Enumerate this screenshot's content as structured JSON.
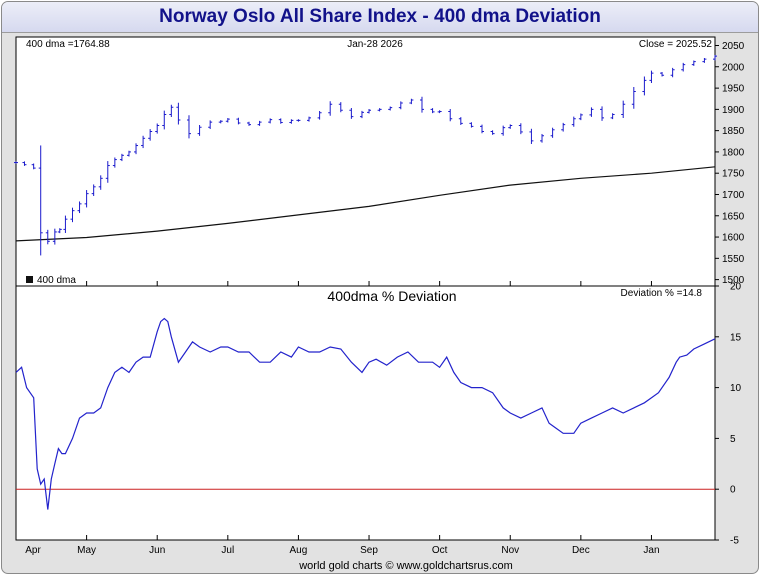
{
  "title": "Norway Oslo All Share Index - 400 dma Deviation",
  "footer": "world gold charts © www.goldchartsrus.com",
  "colors": {
    "price": "#1a1acc",
    "dma": "#111111",
    "deviation": "#2323cc",
    "zero_line": "#cc2020",
    "title_text": "#12128a"
  },
  "chart_data": [
    {
      "type": "line",
      "title": "",
      "header": {
        "dma_label": "400 dma =1764.88",
        "date_label": "Jan-28  2026",
        "close_label": "Close = 2025.52"
      },
      "legend": [
        {
          "label": "400 dma",
          "color": "#111111",
          "placement": "bottom-left"
        }
      ],
      "x_months": [
        "Apr",
        "May",
        "Jun",
        "Jul",
        "Aug",
        "Sep",
        "Oct",
        "Nov",
        "Dec",
        "Jan"
      ],
      "x_month_index": [
        0.5,
        1,
        2,
        3,
        4,
        5,
        6,
        7,
        8,
        9
      ],
      "x_range": [
        0,
        9.9
      ],
      "y_ticks": [
        1500,
        1550,
        1600,
        1650,
        1700,
        1750,
        1800,
        1850,
        1900,
        1950,
        2000,
        2050
      ],
      "ylim": [
        1485,
        2070
      ],
      "grid": false,
      "series": [
        {
          "name": "Oslo All Share Index",
          "style": "hlc-bars",
          "x": [
            0,
            0.12,
            0.25,
            0.35,
            0.45,
            0.55,
            0.62,
            0.7,
            0.8,
            0.9,
            1.0,
            1.1,
            1.2,
            1.3,
            1.4,
            1.5,
            1.6,
            1.7,
            1.8,
            1.9,
            2.0,
            2.1,
            2.2,
            2.3,
            2.45,
            2.6,
            2.75,
            2.9,
            3.0,
            3.15,
            3.3,
            3.45,
            3.6,
            3.75,
            3.9,
            4.0,
            4.15,
            4.3,
            4.45,
            4.6,
            4.75,
            4.9,
            5.0,
            5.15,
            5.3,
            5.45,
            5.6,
            5.75,
            5.9,
            6.0,
            6.15,
            6.3,
            6.45,
            6.6,
            6.75,
            6.9,
            7.0,
            7.15,
            7.3,
            7.45,
            7.6,
            7.75,
            7.9,
            8.0,
            8.15,
            8.3,
            8.45,
            8.6,
            8.75,
            8.9,
            9.0,
            9.15,
            9.3,
            9.45,
            9.6,
            9.75,
            9.9
          ],
          "y": [
            1775,
            1770,
            1762,
            1610,
            1590,
            1612,
            1618,
            1642,
            1662,
            1678,
            1702,
            1718,
            1738,
            1768,
            1782,
            1792,
            1800,
            1815,
            1832,
            1848,
            1862,
            1888,
            1905,
            1875,
            1843,
            1858,
            1870,
            1872,
            1877,
            1868,
            1864,
            1870,
            1876,
            1869,
            1874,
            1874,
            1880,
            1892,
            1912,
            1898,
            1883,
            1893,
            1898,
            1900,
            1904,
            1915,
            1922,
            1900,
            1894,
            1895,
            1878,
            1867,
            1860,
            1848,
            1843,
            1857,
            1862,
            1847,
            1826,
            1838,
            1852,
            1864,
            1878,
            1887,
            1900,
            1880,
            1888,
            1912,
            1942,
            1968,
            1985,
            1980,
            1993,
            2005,
            2012,
            2018,
            2025
          ]
        },
        {
          "name": "400 dma",
          "x": [
            0,
            1,
            2,
            3,
            4,
            5,
            6,
            7,
            8,
            9,
            9.9
          ],
          "y": [
            1591,
            1599,
            1614,
            1632,
            1652,
            1672,
            1698,
            1722,
            1738,
            1750,
            1765
          ]
        }
      ]
    },
    {
      "type": "line",
      "title": "400dma  %  Deviation",
      "header": {
        "value_label": "Deviation % =14.8"
      },
      "x_months": [
        "Apr",
        "May",
        "Jun",
        "Jul",
        "Aug",
        "Sep",
        "Oct",
        "Nov",
        "Dec",
        "Jan"
      ],
      "x_month_index": [
        0.5,
        1,
        2,
        3,
        4,
        5,
        6,
        7,
        8,
        9
      ],
      "x_range": [
        0,
        9.9
      ],
      "y_ticks": [
        -5,
        0,
        5,
        10,
        15,
        20
      ],
      "ylim": [
        -5,
        20
      ],
      "reference_line": 0,
      "grid": false,
      "series": [
        {
          "name": "Deviation %",
          "x": [
            0,
            0.08,
            0.15,
            0.25,
            0.3,
            0.35,
            0.4,
            0.45,
            0.5,
            0.55,
            0.6,
            0.65,
            0.7,
            0.8,
            0.9,
            1.0,
            1.1,
            1.2,
            1.3,
            1.4,
            1.5,
            1.6,
            1.7,
            1.8,
            1.9,
            2.0,
            2.05,
            2.1,
            2.15,
            2.2,
            2.3,
            2.4,
            2.5,
            2.6,
            2.75,
            2.9,
            3.0,
            3.15,
            3.3,
            3.45,
            3.6,
            3.75,
            3.9,
            4.0,
            4.15,
            4.3,
            4.45,
            4.6,
            4.75,
            4.9,
            5.0,
            5.1,
            5.25,
            5.4,
            5.55,
            5.7,
            5.9,
            6.0,
            6.1,
            6.2,
            6.3,
            6.45,
            6.6,
            6.75,
            6.9,
            7.0,
            7.15,
            7.3,
            7.45,
            7.55,
            7.65,
            7.75,
            7.9,
            8.0,
            8.15,
            8.3,
            8.45,
            8.6,
            8.75,
            8.9,
            9.0,
            9.1,
            9.25,
            9.35,
            9.4,
            9.5,
            9.6,
            9.75,
            9.9
          ],
          "y": [
            11.5,
            12,
            10,
            9,
            2,
            0.5,
            1,
            -2,
            1,
            2.5,
            4,
            3.5,
            3.5,
            5,
            7,
            7.5,
            7.5,
            8,
            10,
            11.5,
            12,
            11.5,
            12.5,
            13,
            13,
            15.5,
            16.5,
            16.8,
            16.5,
            15,
            12.5,
            13.5,
            14.5,
            14,
            13.5,
            14,
            14,
            13.5,
            13.5,
            12.5,
            12.5,
            13.5,
            13,
            14,
            13.5,
            13.5,
            14,
            13.8,
            12.5,
            11.5,
            12.5,
            12.8,
            12.2,
            13,
            13.5,
            12.5,
            12.5,
            12,
            13,
            11.5,
            10.5,
            10,
            10,
            9.5,
            8,
            7.5,
            7,
            7.5,
            8,
            6.5,
            6,
            5.5,
            5.5,
            6.5,
            7,
            7.5,
            8,
            7.5,
            8,
            8.5,
            9,
            9.5,
            11,
            12.5,
            13,
            13.2,
            13.8,
            14.3,
            14.8
          ]
        }
      ]
    }
  ]
}
